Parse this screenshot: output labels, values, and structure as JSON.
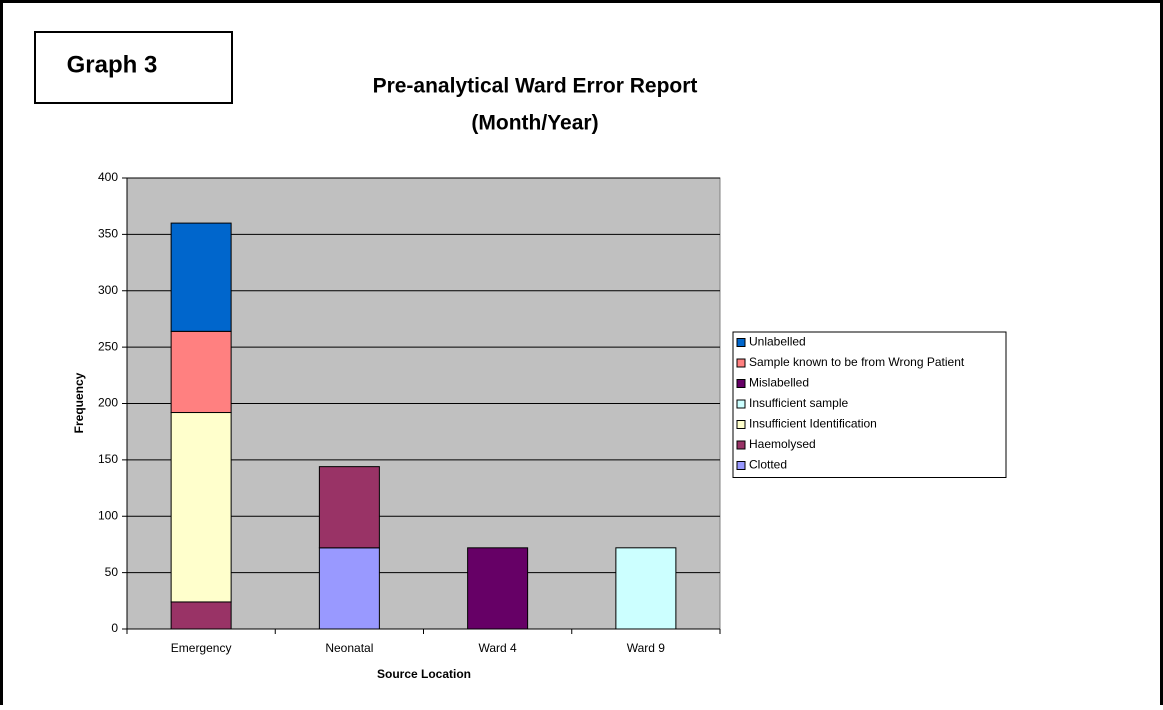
{
  "chart_data": {
    "type": "stacked_bar",
    "badge": "Graph 3",
    "title": "Pre-analytical Ward Error Report",
    "subtitle": "(Month/Year)",
    "x_label": "Source Location",
    "y_label": "Frequency",
    "categories": [
      "Emergency",
      "Neonatal",
      "Ward 4",
      "Ward 9"
    ],
    "series": [
      {
        "name": "Clotted",
        "color": "#9999ff",
        "values": [
          0,
          72,
          0,
          0
        ]
      },
      {
        "name": "Haemolysed",
        "color": "#993366",
        "values": [
          24,
          72,
          0,
          0
        ]
      },
      {
        "name": "Insufficient Identification",
        "color": "#ffffcc",
        "values": [
          168,
          0,
          0,
          0
        ]
      },
      {
        "name": "Insufficient sample",
        "color": "#ccffff",
        "values": [
          0,
          0,
          0,
          72
        ]
      },
      {
        "name": "Mislabelled",
        "color": "#660066",
        "values": [
          0,
          0,
          72,
          0
        ]
      },
      {
        "name": "Sample known to be from Wrong Patient",
        "color": "#ff8080",
        "values": [
          72,
          0,
          0,
          0
        ]
      },
      {
        "name": "Unlabelled",
        "color": "#0066cc",
        "values": [
          96,
          0,
          0,
          0
        ]
      }
    ],
    "ylim": [
      0,
      400
    ],
    "yticks": [
      0,
      50,
      100,
      150,
      200,
      250,
      300,
      350,
      400
    ],
    "grid": true,
    "legend": "right",
    "plot_color": "#c0c0c0"
  }
}
